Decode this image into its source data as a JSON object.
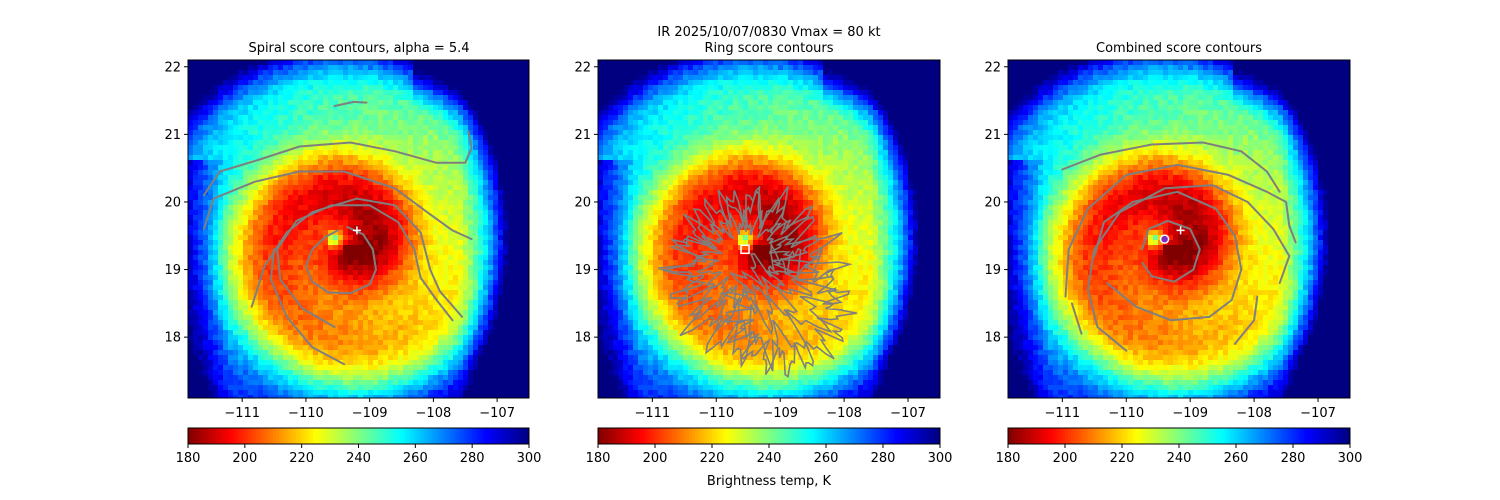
{
  "figure": {
    "suptitle_line1": "IR  2025/10/07/0830    Vmax = 80 kt",
    "colorbar_label": "Brightness temp, K"
  },
  "colormap": "jet_r",
  "colors": {
    "contour": "#7f7f7f",
    "center_marker": "#ffffff",
    "combined_center_fill": "#7b2cbf"
  },
  "chart_data": [
    {
      "type": "heatmap",
      "title": "Spiral score contours, alpha =  5.4",
      "xlabel": "",
      "ylabel": "",
      "xlim": [
        -111.85,
        -106.5
      ],
      "ylim": [
        17.1,
        22.1
      ],
      "xticks": [
        -111,
        -110,
        -109,
        -108,
        -107
      ],
      "yticks": [
        18,
        19,
        20,
        21,
        22
      ],
      "colorbar": {
        "range": [
          180,
          300
        ],
        "ticks": [
          180,
          200,
          220,
          240,
          260,
          280,
          300
        ]
      },
      "markers": [
        {
          "kind": "plus",
          "x": -109.2,
          "y": 19.58
        }
      ],
      "contours": [
        [
          [
            -109.35,
            19.63
          ],
          [
            -109.1,
            19.52
          ],
          [
            -108.95,
            19.3
          ],
          [
            -108.9,
            19.0
          ],
          [
            -109.0,
            18.78
          ],
          [
            -109.3,
            18.65
          ],
          [
            -109.65,
            18.66
          ],
          [
            -109.9,
            18.82
          ],
          [
            -110.0,
            19.05
          ],
          [
            -109.9,
            19.3
          ],
          [
            -109.7,
            19.48
          ],
          [
            -109.5,
            19.58
          ]
        ],
        [
          [
            -109.55,
            18.15
          ],
          [
            -110.05,
            18.42
          ],
          [
            -110.4,
            18.85
          ],
          [
            -110.45,
            19.3
          ],
          [
            -110.15,
            19.72
          ],
          [
            -109.6,
            19.95
          ],
          [
            -109.0,
            19.95
          ],
          [
            -108.55,
            19.7
          ],
          [
            -108.3,
            19.3
          ],
          [
            -108.2,
            18.88
          ],
          [
            -107.95,
            18.55
          ],
          [
            -107.7,
            18.25
          ]
        ],
        [
          [
            -111.6,
            19.6
          ],
          [
            -111.45,
            20.05
          ],
          [
            -110.8,
            20.3
          ],
          [
            -110.1,
            20.45
          ],
          [
            -109.4,
            20.45
          ],
          [
            -108.6,
            20.2
          ],
          [
            -108.1,
            19.85
          ],
          [
            -107.7,
            19.58
          ],
          [
            -107.4,
            19.45
          ]
        ],
        [
          [
            -110.85,
            18.45
          ],
          [
            -110.65,
            19.05
          ],
          [
            -110.3,
            19.55
          ],
          [
            -109.9,
            19.85
          ],
          [
            -109.2,
            20.05
          ],
          [
            -108.6,
            19.95
          ],
          [
            -108.2,
            19.55
          ],
          [
            -108.05,
            19.0
          ],
          [
            -107.9,
            18.68
          ],
          [
            -107.55,
            18.3
          ]
        ],
        [
          [
            -109.4,
            17.6
          ],
          [
            -109.9,
            17.85
          ],
          [
            -110.3,
            18.3
          ],
          [
            -110.55,
            18.85
          ],
          [
            -110.5,
            19.3
          ]
        ],
        [
          [
            -111.6,
            20.1
          ],
          [
            -111.35,
            20.45
          ],
          [
            -110.75,
            20.62
          ],
          [
            -110.1,
            20.82
          ],
          [
            -109.3,
            20.88
          ],
          [
            -108.6,
            20.75
          ],
          [
            -107.95,
            20.58
          ],
          [
            -107.5,
            20.58
          ],
          [
            -107.4,
            20.8
          ],
          [
            -107.45,
            21.05
          ]
        ],
        [
          [
            -109.55,
            21.42
          ],
          [
            -109.25,
            21.48
          ],
          [
            -109.05,
            21.47
          ]
        ]
      ]
    },
    {
      "type": "heatmap",
      "title": "Ring score contours",
      "xlabel": "",
      "ylabel": "",
      "xlim": [
        -111.85,
        -106.5
      ],
      "ylim": [
        17.1,
        22.1
      ],
      "xticks": [
        -111,
        -110,
        -109,
        -108,
        -107
      ],
      "yticks": [
        18,
        19,
        20,
        21,
        22
      ],
      "colorbar": {
        "range": [
          180,
          300
        ],
        "ticks": [
          180,
          200,
          220,
          240,
          260,
          280,
          300
        ]
      },
      "markers": [
        {
          "kind": "square",
          "x": -109.55,
          "y": 19.3
        }
      ],
      "contours": [],
      "noise_contours": [
        {
          "cx": -109.55,
          "cy": 19.15,
          "r": 0.55
        },
        {
          "cx": -109.55,
          "cy": 19.1,
          "r": 0.85
        },
        {
          "cx": -109.4,
          "cy": 18.9,
          "r": 1.05
        },
        {
          "cx": -108.9,
          "cy": 18.4,
          "r": 0.75
        }
      ]
    },
    {
      "type": "heatmap",
      "title": "Combined score contours",
      "xlabel": "",
      "ylabel": "",
      "xlim": [
        -111.85,
        -106.5
      ],
      "ylim": [
        17.1,
        22.1
      ],
      "xticks": [
        -111,
        -110,
        -109,
        -108,
        -107
      ],
      "yticks": [
        18,
        19,
        20,
        21,
        22
      ],
      "colorbar": {
        "range": [
          180,
          300
        ],
        "ticks": [
          180,
          200,
          220,
          240,
          260,
          280,
          300
        ]
      },
      "markers": [
        {
          "kind": "plus",
          "x": -109.15,
          "y": 19.58
        },
        {
          "kind": "circle",
          "x": -109.4,
          "y": 19.45
        }
      ],
      "contours": [
        [
          [
            -109.75,
            19.3
          ],
          [
            -109.65,
            19.6
          ],
          [
            -109.35,
            19.72
          ],
          [
            -109.0,
            19.6
          ],
          [
            -108.85,
            19.3
          ],
          [
            -108.95,
            19.0
          ],
          [
            -109.25,
            18.82
          ],
          [
            -109.6,
            18.9
          ],
          [
            -109.75,
            19.1
          ]
        ],
        [
          [
            -110.5,
            19.2
          ],
          [
            -110.35,
            19.7
          ],
          [
            -109.9,
            20.0
          ],
          [
            -109.2,
            20.15
          ],
          [
            -108.6,
            19.9
          ],
          [
            -108.3,
            19.5
          ],
          [
            -108.2,
            19.0
          ],
          [
            -108.35,
            18.55
          ],
          [
            -108.7,
            18.3
          ],
          [
            -109.3,
            18.25
          ],
          [
            -109.85,
            18.45
          ],
          [
            -110.3,
            18.8
          ]
        ],
        [
          [
            -110.0,
            17.8
          ],
          [
            -110.45,
            18.15
          ],
          [
            -110.6,
            18.7
          ],
          [
            -110.5,
            19.3
          ],
          [
            -110.1,
            19.85
          ],
          [
            -109.4,
            20.2
          ],
          [
            -108.65,
            20.25
          ],
          [
            -108.1,
            20.0
          ],
          [
            -107.7,
            19.6
          ],
          [
            -107.45,
            19.2
          ],
          [
            -107.6,
            18.8
          ]
        ],
        [
          [
            -110.95,
            18.6
          ],
          [
            -110.9,
            19.3
          ],
          [
            -110.6,
            19.9
          ],
          [
            -110.0,
            20.4
          ],
          [
            -109.2,
            20.55
          ],
          [
            -108.4,
            20.4
          ],
          [
            -107.8,
            20.15
          ],
          [
            -107.5,
            20.0
          ],
          [
            -107.45,
            19.65
          ],
          [
            -107.35,
            19.4
          ]
        ],
        [
          [
            -111.0,
            20.48
          ],
          [
            -110.4,
            20.7
          ],
          [
            -109.6,
            20.85
          ],
          [
            -108.8,
            20.88
          ],
          [
            -108.2,
            20.75
          ],
          [
            -107.8,
            20.45
          ],
          [
            -107.6,
            20.15
          ]
        ],
        [
          [
            -110.7,
            18.05
          ],
          [
            -110.85,
            18.5
          ]
        ],
        [
          [
            -108.3,
            17.9
          ],
          [
            -108.0,
            18.25
          ],
          [
            -107.95,
            18.6
          ]
        ]
      ]
    }
  ]
}
